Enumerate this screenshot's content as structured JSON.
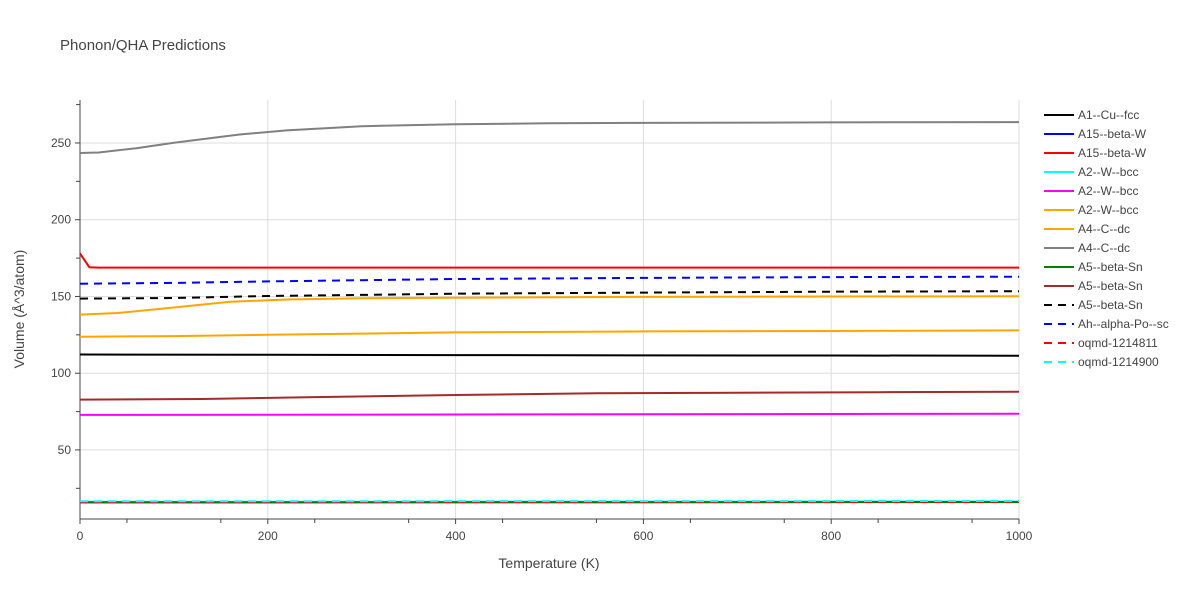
{
  "chart_data": {
    "type": "line",
    "title": "Phonon/QHA Predictions",
    "xlabel": "Temperature (K)",
    "ylabel": "Volume (Å^3/atom)",
    "xlim": [
      0,
      1000
    ],
    "ylim": [
      5,
      278
    ],
    "x_ticks": [
      0,
      200,
      400,
      600,
      800,
      1000
    ],
    "y_ticks": [
      50,
      100,
      150,
      200,
      250
    ],
    "grid": true,
    "legend_position": "right",
    "series": [
      {
        "name": "A1--Cu--fcc",
        "color": "#000000",
        "dash": "solid",
        "x": [
          0,
          200,
          400,
          600,
          800,
          1000
        ],
        "y": [
          112.2,
          112.0,
          111.8,
          111.6,
          111.5,
          111.4
        ]
      },
      {
        "name": "A15--beta-W",
        "color": "#0000ff",
        "dash": "solid",
        "x": [
          0,
          1000
        ],
        "y": [
          15.8,
          16.0
        ]
      },
      {
        "name": "A15--beta-W",
        "color": "#ff0000",
        "dash": "solid",
        "x": [
          0,
          10,
          20,
          200,
          400,
          600,
          800,
          1000
        ],
        "y": [
          178,
          169,
          168.8,
          168.8,
          168.8,
          168.8,
          168.8,
          168.8
        ]
      },
      {
        "name": "A2--W--bcc",
        "color": "#00ffff",
        "dash": "solid",
        "x": [
          0,
          1000
        ],
        "y": [
          16.2,
          16.4
        ]
      },
      {
        "name": "A2--W--bcc",
        "color": "#ff00ff",
        "dash": "solid",
        "x": [
          0,
          200,
          400,
          600,
          800,
          1000
        ],
        "y": [
          72.8,
          72.9,
          73.1,
          73.3,
          73.4,
          73.6
        ]
      },
      {
        "name": "A2--W--bcc",
        "color": "#ffa500",
        "dash": "solid",
        "x": [
          0,
          100,
          200,
          300,
          400,
          600,
          800,
          1000
        ],
        "y": [
          123.8,
          124.2,
          125.0,
          125.8,
          126.6,
          127.2,
          127.5,
          127.9
        ]
      },
      {
        "name": "A4--C--dc",
        "color": "#ffa500",
        "dash": "solid",
        "x": [
          0,
          40,
          100,
          160,
          220,
          300,
          400,
          600,
          800,
          1000
        ],
        "y": [
          138.2,
          139.2,
          142.8,
          146.5,
          148.0,
          148.8,
          149.2,
          149.7,
          150.0,
          150.1
        ]
      },
      {
        "name": "A4--C--dc",
        "color": "#808080",
        "dash": "solid",
        "x": [
          0,
          20,
          60,
          100,
          170,
          220,
          300,
          400,
          500,
          600,
          800,
          1000
        ],
        "y": [
          243.5,
          243.8,
          246.6,
          250.2,
          255.5,
          258.2,
          260.9,
          262.2,
          262.8,
          263.1,
          263.4,
          263.6
        ]
      },
      {
        "name": "A5--beta-Sn",
        "color": "#008000",
        "dash": "solid",
        "x": [
          0,
          1000
        ],
        "y": [
          15.9,
          16.1
        ]
      },
      {
        "name": "A5--beta-Sn",
        "color": "#a52a2a",
        "dash": "solid",
        "x": [
          0,
          130,
          250,
          400,
          550,
          700,
          850,
          1000
        ],
        "y": [
          82.8,
          83.2,
          84.4,
          85.8,
          86.9,
          87.3,
          87.6,
          87.9
        ]
      },
      {
        "name": "A5--beta-Sn",
        "color": "#000000",
        "dash": "dash",
        "x": [
          0,
          100,
          200,
          300,
          400,
          600,
          800,
          1000
        ],
        "y": [
          148.6,
          149.0,
          150.3,
          151.0,
          151.8,
          152.5,
          153.1,
          153.4
        ]
      },
      {
        "name": "Ah--alpha-Po--sc",
        "color": "#0000ff",
        "dash": "dash",
        "x": [
          0,
          100,
          200,
          300,
          400,
          600,
          800,
          1000
        ],
        "y": [
          158.3,
          158.8,
          159.8,
          160.6,
          161.4,
          162.1,
          162.6,
          162.9
        ]
      },
      {
        "name": "oqmd-1214811",
        "color": "#ff0000",
        "dash": "dash",
        "x": [
          0,
          1000
        ],
        "y": [
          16.0,
          16.2
        ]
      },
      {
        "name": "oqmd-1214900",
        "color": "#00ffff",
        "dash": "dash",
        "x": [
          0,
          1000
        ],
        "y": [
          16.5,
          16.7
        ]
      }
    ]
  }
}
